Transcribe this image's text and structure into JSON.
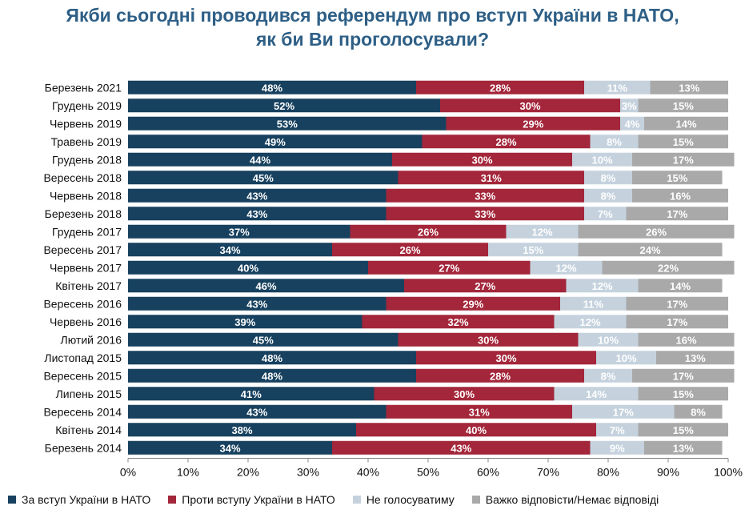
{
  "title": {
    "line1": "Якби сьогодні проводився референдум про вступ України в НАТО,",
    "line2": "як би Ви проголосували?"
  },
  "colors": {
    "for": "#17415f",
    "against": "#a3263a",
    "wont_vote": "#c5d2de",
    "hard_to_say": "#a9a9a9"
  },
  "chart_data": {
    "type": "bar",
    "orientation": "horizontal",
    "stacked": true,
    "title": "Якби сьогодні проводився референдум про вступ України в НАТО, як би Ви проголосували?",
    "categories": [
      "Березень 2021",
      "Грудень 2019",
      "Червень 2019",
      "Травень 2019",
      "Грудень 2018",
      "Вересень 2018",
      "Червень 2018",
      "Березень 2018",
      "Грудень 2017",
      "Вересень 2017",
      "Червень 2017",
      "Квітень 2017",
      "Вересень 2016",
      "Червень 2016",
      "Лютий 2016",
      "Листопад 2015",
      "Вересень 2015",
      "Липень 2015",
      "Вересень 2014",
      "Квітень 2014",
      "Березень 2014"
    ],
    "series": [
      {
        "name": "За вступ України в НАТО",
        "values": [
          48,
          52,
          53,
          49,
          44,
          45,
          43,
          43,
          37,
          34,
          40,
          46,
          43,
          39,
          45,
          48,
          48,
          41,
          43,
          38,
          34
        ]
      },
      {
        "name": "Проти вступу України в НАТО",
        "values": [
          28,
          30,
          29,
          28,
          30,
          31,
          33,
          33,
          26,
          26,
          27,
          27,
          29,
          32,
          30,
          30,
          28,
          30,
          31,
          40,
          43
        ]
      },
      {
        "name": "Не голосуватиму",
        "values": [
          11,
          3,
          4,
          8,
          10,
          8,
          8,
          7,
          12,
          15,
          12,
          12,
          11,
          12,
          10,
          10,
          8,
          14,
          17,
          7,
          9
        ]
      },
      {
        "name": "Важко відповісти/Немає відповіді",
        "values": [
          13,
          15,
          14,
          15,
          17,
          15,
          16,
          17,
          26,
          24,
          22,
          14,
          17,
          17,
          16,
          13,
          17,
          15,
          8,
          15,
          13
        ]
      }
    ],
    "xlim": [
      0,
      100
    ],
    "xticks": [
      "0%",
      "10%",
      "20%",
      "30%",
      "40%",
      "50%",
      "60%",
      "70%",
      "80%",
      "90%",
      "100%"
    ],
    "grid": false,
    "legend_position": "bottom"
  }
}
